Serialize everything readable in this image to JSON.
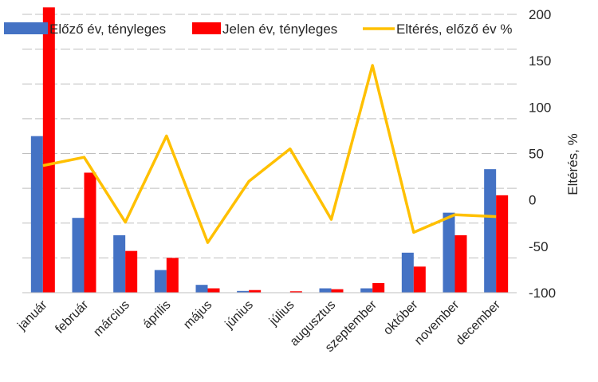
{
  "chart_data": {
    "type": "bar",
    "categories": [
      "január",
      "február",
      "március",
      "április",
      "május",
      "június",
      "július",
      "augusztus",
      "szeptember",
      "október",
      "november",
      "december"
    ],
    "series": [
      {
        "name": "Előző év, tényleges",
        "type": "bar",
        "axis": "left",
        "color": "#4472C4",
        "values": [
          90,
          43,
          33,
          13,
          4.5,
          1,
          0,
          2.5,
          2.5,
          23,
          46,
          71
        ]
      },
      {
        "name": "Jelen év, tényleges",
        "type": "bar",
        "axis": "left",
        "color": "#FF0000",
        "values": [
          164,
          69,
          24,
          20,
          2.5,
          1.5,
          0.8,
          2,
          5.5,
          15,
          33,
          56
        ]
      },
      {
        "name": "Eltérés, előző év %",
        "type": "line",
        "axis": "right",
        "color": "#FFC000",
        "values": [
          37,
          46,
          -24,
          69,
          -46,
          20,
          55,
          -21,
          145,
          -35,
          -16,
          -18
        ]
      }
    ],
    "left_axis": {
      "ylim": [
        0,
        160
      ],
      "grid_step": 20,
      "tick_labels": false
    },
    "right_axis": {
      "ylim": [
        -100,
        200
      ],
      "ticks": [
        -100,
        -50,
        0,
        50,
        100,
        150,
        200
      ],
      "ylabel": "Eltérés, %"
    },
    "legend": "top",
    "grid": true
  }
}
